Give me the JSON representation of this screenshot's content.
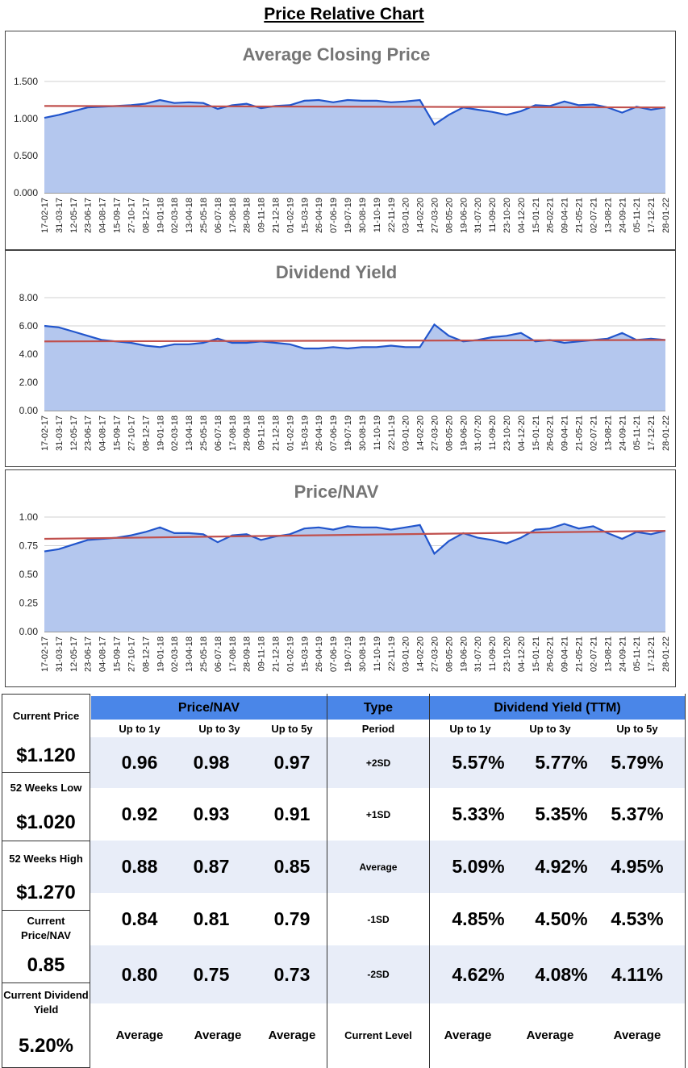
{
  "page_title": "Price Relative Chart",
  "chart_data": [
    {
      "type": "area",
      "title": "Average Closing Price",
      "yticks": [
        "0.000",
        "0.500",
        "1.000",
        "1.500"
      ],
      "ylim": [
        0,
        1.5
      ],
      "x_labels": [
        "17-02-17",
        "31-03-17",
        "12-05-17",
        "23-06-17",
        "04-08-17",
        "15-09-17",
        "27-10-17",
        "08-12-17",
        "19-01-18",
        "02-03-18",
        "13-04-18",
        "25-05-18",
        "06-07-18",
        "17-08-18",
        "28-09-18",
        "09-11-18",
        "21-12-18",
        "01-02-19",
        "15-03-19",
        "26-04-19",
        "07-06-19",
        "19-07-19",
        "30-08-19",
        "11-10-19",
        "22-11-19",
        "03-01-20",
        "14-02-20",
        "27-03-20",
        "08-05-20",
        "19-06-20",
        "31-07-20",
        "11-09-20",
        "23-10-20",
        "04-12-20",
        "15-01-21",
        "26-02-21",
        "09-04-21",
        "21-05-21",
        "02-07-21",
        "13-08-21",
        "24-09-21",
        "05-11-21",
        "17-12-21",
        "28-01-22"
      ],
      "values": [
        1.01,
        1.05,
        1.1,
        1.15,
        1.16,
        1.17,
        1.18,
        1.2,
        1.25,
        1.21,
        1.22,
        1.21,
        1.13,
        1.18,
        1.2,
        1.14,
        1.17,
        1.18,
        1.24,
        1.25,
        1.22,
        1.25,
        1.24,
        1.24,
        1.22,
        1.23,
        1.25,
        0.92,
        1.05,
        1.15,
        1.12,
        1.09,
        1.05,
        1.1,
        1.18,
        1.17,
        1.23,
        1.18,
        1.19,
        1.15,
        1.08,
        1.16,
        1.12,
        1.15
      ],
      "average": [
        1.17,
        1.15
      ]
    },
    {
      "type": "area",
      "title": "Dividend Yield",
      "yticks": [
        "0.00",
        "2.00",
        "4.00",
        "6.00",
        "8.00"
      ],
      "ylim": [
        0,
        8
      ],
      "x_labels": [
        "17-02-17",
        "31-03-17",
        "12-05-17",
        "23-06-17",
        "04-08-17",
        "15-09-17",
        "27-10-17",
        "08-12-17",
        "19-01-18",
        "02-03-18",
        "13-04-18",
        "25-05-18",
        "06-07-18",
        "17-08-18",
        "28-09-18",
        "09-11-18",
        "21-12-18",
        "01-02-19",
        "15-03-19",
        "26-04-19",
        "07-06-19",
        "19-07-19",
        "30-08-19",
        "11-10-19",
        "22-11-19",
        "03-01-20",
        "14-02-20",
        "27-03-20",
        "08-05-20",
        "19-06-20",
        "31-07-20",
        "11-09-20",
        "23-10-20",
        "04-12-20",
        "15-01-21",
        "26-02-21",
        "09-04-21",
        "21-05-21",
        "02-07-21",
        "13-08-21",
        "24-09-21",
        "05-11-21",
        "17-12-21",
        "28-01-22"
      ],
      "values": [
        6.0,
        5.9,
        5.6,
        5.3,
        5.0,
        4.9,
        4.8,
        4.6,
        4.5,
        4.7,
        4.7,
        4.8,
        5.1,
        4.8,
        4.8,
        4.9,
        4.8,
        4.7,
        4.4,
        4.4,
        4.5,
        4.4,
        4.5,
        4.5,
        4.6,
        4.5,
        4.5,
        6.1,
        5.3,
        4.9,
        5.0,
        5.2,
        5.3,
        5.5,
        4.9,
        5.0,
        4.8,
        4.9,
        5.0,
        5.1,
        5.5,
        5.0,
        5.1,
        5.0
      ],
      "average": [
        4.9,
        5.0
      ]
    },
    {
      "type": "area",
      "title": "Price/NAV",
      "yticks": [
        "0.00",
        "0.25",
        "0.50",
        "0.75",
        "1.00"
      ],
      "ylim": [
        0,
        1
      ],
      "x_labels": [
        "17-02-17",
        "31-03-17",
        "12-05-17",
        "23-06-17",
        "04-08-17",
        "15-09-17",
        "27-10-17",
        "08-12-17",
        "19-01-18",
        "02-03-18",
        "13-04-18",
        "25-05-18",
        "06-07-18",
        "17-08-18",
        "28-09-18",
        "09-11-18",
        "21-12-18",
        "01-02-19",
        "15-03-19",
        "26-04-19",
        "07-06-19",
        "19-07-19",
        "30-08-19",
        "11-10-19",
        "22-11-19",
        "03-01-20",
        "14-02-20",
        "27-03-20",
        "08-05-20",
        "19-06-20",
        "31-07-20",
        "11-09-20",
        "23-10-20",
        "04-12-20",
        "15-01-21",
        "26-02-21",
        "09-04-21",
        "21-05-21",
        "02-07-21",
        "13-08-21",
        "24-09-21",
        "05-11-21",
        "17-12-21",
        "28-01-22"
      ],
      "values": [
        0.7,
        0.72,
        0.76,
        0.8,
        0.81,
        0.82,
        0.84,
        0.87,
        0.91,
        0.86,
        0.86,
        0.85,
        0.78,
        0.84,
        0.85,
        0.8,
        0.83,
        0.85,
        0.9,
        0.91,
        0.89,
        0.92,
        0.91,
        0.91,
        0.89,
        0.91,
        0.93,
        0.68,
        0.79,
        0.86,
        0.82,
        0.8,
        0.77,
        0.82,
        0.89,
        0.9,
        0.94,
        0.9,
        0.92,
        0.86,
        0.81,
        0.87,
        0.85,
        0.88
      ],
      "average": [
        0.81,
        0.88
      ]
    }
  ],
  "side": {
    "current_price_label": "Current Price",
    "current_price": "$1.120",
    "low_label": "52 Weeks Low",
    "low": "$1.020",
    "high_label": "52 Weeks High",
    "high": "$1.270",
    "pnav_label": "Current Price/NAV",
    "pnav": "0.85",
    "dy_label": "Current Dividend Yield",
    "dy": "5.20%"
  },
  "table": {
    "pnav_header": "Price/NAV",
    "type_header": "Type",
    "dy_header": "Dividend Yield (TTM)",
    "sub": [
      "Up to 1y",
      "Up to 3y",
      "Up to 5y",
      "Period",
      "Up to 1y",
      "Up to 3y",
      "Up to 5y"
    ],
    "rows": [
      {
        "type": "+2SD",
        "pnav": [
          "0.96",
          "0.98",
          "0.97"
        ],
        "dy": [
          "5.57%",
          "5.77%",
          "5.79%"
        ]
      },
      {
        "type": "+1SD",
        "pnav": [
          "0.92",
          "0.93",
          "0.91"
        ],
        "dy": [
          "5.33%",
          "5.35%",
          "5.37%"
        ]
      },
      {
        "type": "Average",
        "pnav": [
          "0.88",
          "0.87",
          "0.85"
        ],
        "dy": [
          "5.09%",
          "4.92%",
          "4.95%"
        ]
      },
      {
        "type": "-1SD",
        "pnav": [
          "0.84",
          "0.81",
          "0.79"
        ],
        "dy": [
          "4.85%",
          "4.50%",
          "4.53%"
        ]
      },
      {
        "type": "-2SD",
        "pnav": [
          "0.80",
          "0.75",
          "0.73"
        ],
        "dy": [
          "4.62%",
          "4.08%",
          "4.11%"
        ]
      }
    ],
    "footer": [
      "Average",
      "Average",
      "Average",
      "Current Level",
      "Average",
      "Average",
      "Average"
    ]
  }
}
